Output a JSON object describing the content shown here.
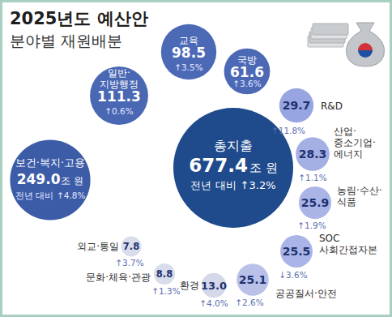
{
  "chart_data": {
    "type": "bubble",
    "title": "2025년도 예산안",
    "subtitle": "분야별 재원배분",
    "unit": "조 원",
    "change_prefix": "전년 대비",
    "data_labels": true,
    "total": {
      "label": "총지출",
      "value": 677.4,
      "change": 3.2,
      "change_label": "↑3.2%",
      "color": "#1f4a8c"
    },
    "categories": [
      "보건·복지·고용",
      "일반·\n지방행정",
      "교육",
      "국방",
      "R&D",
      "산업·\n중소기업·\n에너지",
      "농림·수산·\n식품",
      "SOC\n사회간접자본",
      "공공질서·안전",
      "환경",
      "문화·체육·관광",
      "외교·통일"
    ],
    "values": [
      249.0,
      111.3,
      98.5,
      61.6,
      29.7,
      28.3,
      25.9,
      25.5,
      25.1,
      13.0,
      8.8,
      7.8
    ],
    "value_labels": [
      "249.0",
      "111.3",
      "98.5",
      "61.6",
      "29.7",
      "28.3",
      "25.9",
      "25.5",
      "25.1",
      "13.0",
      "8.8",
      "7.8"
    ],
    "changes": [
      4.8,
      0.6,
      3.5,
      3.6,
      11.8,
      1.1,
      1.9,
      -3.6,
      2.6,
      4.0,
      1.3,
      3.7
    ],
    "change_labels": [
      "↑4.8%",
      "↑0.6%",
      "↑3.5%",
      "↑3.6%",
      "↑11.8%",
      "↑1.1%",
      "↑1.9%",
      "↓3.6%",
      "↑2.6%",
      "↑4.0%",
      "↑1.3%",
      "↑3.7%"
    ],
    "colors": [
      "#3d5ca8",
      "#4a67b3",
      "#4c69b6",
      "#4c69b6",
      "#97a5e0",
      "#a4afe4",
      "#aab4e6",
      "#aab4e6",
      "#b9c1e9",
      "#d5d8e9",
      "#d9dcea",
      "#d9dcea"
    ]
  }
}
